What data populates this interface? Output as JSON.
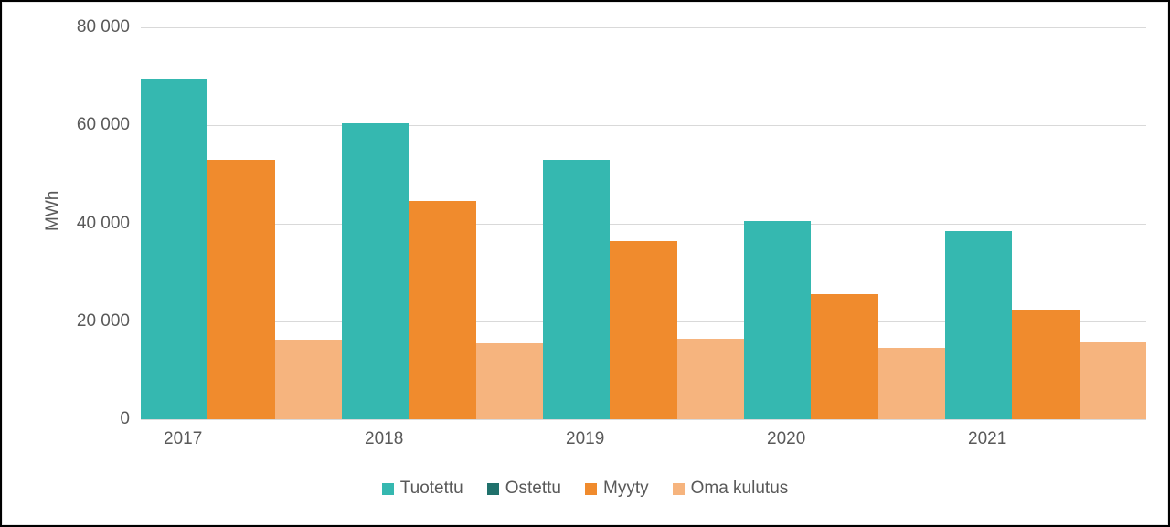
{
  "chart_data": {
    "type": "bar",
    "title": "",
    "ylabel": "MWh",
    "xlabel": "",
    "ylim": [
      0,
      80000
    ],
    "ytick_interval": 20000,
    "ytick_labels": [
      "0",
      "20 000",
      "40 000",
      "60 000",
      "80 000"
    ],
    "categories": [
      "2017",
      "2018",
      "2019",
      "2020",
      "2021"
    ],
    "series": [
      {
        "name": "Tuotettu",
        "color": "#35b8b0",
        "values": [
          69500,
          60500,
          53000,
          40500,
          38400
        ]
      },
      {
        "name": "Ostettu",
        "color": "#20716c",
        "values": [
          0,
          0,
          0,
          0,
          0
        ]
      },
      {
        "name": "Myyty",
        "color": "#f08b2d",
        "values": [
          53000,
          44500,
          36400,
          25500,
          22300
        ]
      },
      {
        "name": "Oma kulutus",
        "color": "#f6b47e",
        "values": [
          16200,
          15500,
          16400,
          14500,
          15800
        ]
      }
    ],
    "legend_position": "bottom",
    "grid": true,
    "gridline_color": "#d9d9d9",
    "axis_text_color": "#595959",
    "background_color": "#ffffff",
    "frame_border_color": "#000000"
  }
}
